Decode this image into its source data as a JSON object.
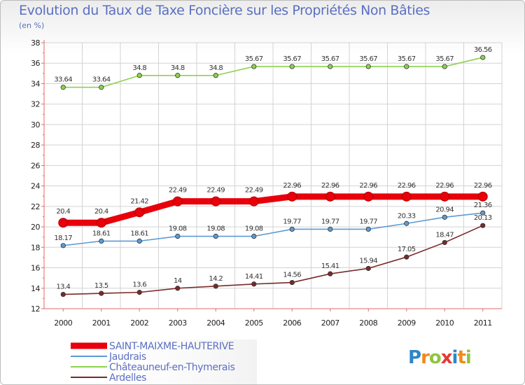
{
  "chart_data": {
    "type": "line",
    "title": "Evolution du Taux de Taxe Foncière sur les Propriétés Non Bâties",
    "ylabel": "(en %)",
    "xlabel": "",
    "ylim": [
      12,
      38
    ],
    "yticks": [
      "12",
      "14",
      "16",
      "18",
      "20",
      "22",
      "24",
      "26",
      "28",
      "30",
      "32",
      "34",
      "36",
      "38"
    ],
    "categories": [
      "2000",
      "2001",
      "2002",
      "2003",
      "2004",
      "2005",
      "2006",
      "2007",
      "2008",
      "2009",
      "2010",
      "2011"
    ],
    "series": [
      {
        "name": "SAINT-MAIXME-HAUTERIVE",
        "color": "#e8000b",
        "values": [
          20.4,
          20.4,
          21.42,
          22.49,
          22.49,
          22.49,
          22.96,
          22.96,
          22.96,
          22.96,
          22.96,
          22.96
        ],
        "labels": [
          "20.4",
          "20.4",
          "21.42",
          "22.49",
          "22.49",
          "22.49",
          "22.96",
          "22.96",
          "22.96",
          "22.96",
          "22.96",
          "22.96"
        ]
      },
      {
        "name": "Jaudrais",
        "color": "#5d9bd3",
        "values": [
          18.17,
          18.61,
          18.61,
          19.08,
          19.08,
          19.08,
          19.77,
          19.77,
          19.77,
          20.33,
          20.94,
          21.36
        ],
        "labels": [
          "18.17",
          "18.61",
          "18.61",
          "19.08",
          "19.08",
          "19.08",
          "19.77",
          "19.77",
          "19.77",
          "20.33",
          "20.94",
          "21.36"
        ]
      },
      {
        "name": "Châteauneuf-en-Thymerais",
        "color": "#8ed151",
        "values": [
          33.64,
          33.64,
          34.8,
          34.8,
          34.8,
          35.67,
          35.67,
          35.67,
          35.67,
          35.67,
          35.67,
          36.56
        ],
        "labels": [
          "33.64",
          "33.64",
          "34.8",
          "34.8",
          "34.8",
          "35.67",
          "35.67",
          "35.67",
          "35.67",
          "35.67",
          "35.67",
          "36.56"
        ]
      },
      {
        "name": "Ardelles",
        "color": "#7a2a2a",
        "values": [
          13.4,
          13.5,
          13.6,
          14,
          14.2,
          14.41,
          14.56,
          15.41,
          15.94,
          17.05,
          18.47,
          20.13
        ],
        "labels": [
          "13.4",
          "13.5",
          "13.6",
          "14",
          "14.2",
          "14.41",
          "14.56",
          "15.41",
          "15.94",
          "17.05",
          "18.47",
          "20.13"
        ]
      }
    ],
    "grid": true,
    "legend_position": "bottom-left"
  },
  "brand": {
    "text": "Proxiti"
  }
}
